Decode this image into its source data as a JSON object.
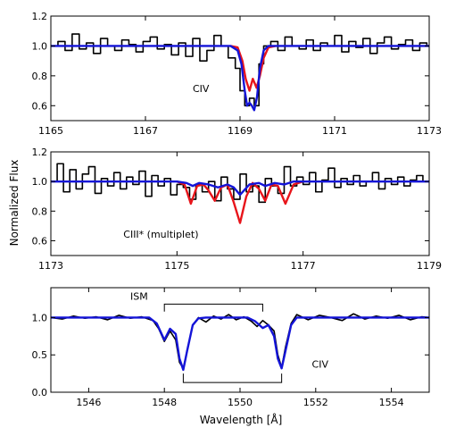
{
  "figure": {
    "ylabel": "Normalized Flux",
    "xlabel": "Wavelength [Å]"
  },
  "colors": {
    "data": "#000000",
    "red_model": "#e8151b",
    "blue_model": "#1414d8"
  },
  "chart_data": [
    {
      "type": "line",
      "xlim": [
        1165,
        1173
      ],
      "ylim": [
        0.5,
        1.2
      ],
      "xticks": [
        1165,
        1167,
        1169,
        1171,
        1173
      ],
      "yticks": [
        0.6,
        0.8,
        1.0,
        1.2
      ],
      "ytick_labels": [
        "0.6",
        "0.8",
        "1.0",
        "1.2"
      ],
      "annotations": [
        {
          "text": "CIV",
          "x": 1168.0,
          "y": 0.69
        }
      ],
      "series": [
        {
          "color": "#000000",
          "style": "step",
          "x": [
            1165.0,
            1165.15,
            1165.3,
            1165.45,
            1165.6,
            1165.75,
            1165.9,
            1166.05,
            1166.2,
            1166.35,
            1166.5,
            1166.65,
            1166.8,
            1166.95,
            1167.1,
            1167.25,
            1167.4,
            1167.55,
            1167.7,
            1167.85,
            1168.0,
            1168.15,
            1168.3,
            1168.45,
            1168.6,
            1168.75,
            1168.9,
            1169.0,
            1169.1,
            1169.2,
            1169.3,
            1169.4,
            1169.5,
            1169.65,
            1169.8,
            1169.95,
            1170.1,
            1170.25,
            1170.4,
            1170.55,
            1170.7,
            1170.85,
            1171.0,
            1171.15,
            1171.3,
            1171.45,
            1171.6,
            1171.75,
            1171.9,
            1172.05,
            1172.2,
            1172.35,
            1172.5,
            1172.65,
            1172.8,
            1172.95
          ],
          "y": [
            1.0,
            1.03,
            0.97,
            1.08,
            0.98,
            1.02,
            0.95,
            1.05,
            1.0,
            0.97,
            1.04,
            1.01,
            0.96,
            1.03,
            1.06,
            0.98,
            1.01,
            0.94,
            1.02,
            0.93,
            1.05,
            0.9,
            0.97,
            1.07,
            1.0,
            0.92,
            0.85,
            0.7,
            0.6,
            0.65,
            0.6,
            0.88,
            1.0,
            1.03,
            0.97,
            1.06,
            1.0,
            0.98,
            1.04,
            0.97,
            1.02,
            1.0,
            1.07,
            0.96,
            1.03,
            0.99,
            1.05,
            0.95,
            1.02,
            1.06,
            0.98,
            1.01,
            1.04,
            0.97,
            1.02,
            1.0
          ]
        },
        {
          "color": "#e8151b",
          "x": [
            1168.8,
            1168.95,
            1169.05,
            1169.12,
            1169.2,
            1169.27,
            1169.35,
            1169.42,
            1169.5,
            1169.6,
            1169.75
          ],
          "y": [
            1.0,
            0.99,
            0.9,
            0.78,
            0.7,
            0.78,
            0.72,
            0.8,
            0.92,
            0.99,
            1.0
          ]
        },
        {
          "color": "#1414d8",
          "x": [
            1165.0,
            1168.8,
            1168.95,
            1169.03,
            1169.1,
            1169.15,
            1169.2,
            1169.25,
            1169.3,
            1169.36,
            1169.42,
            1169.5,
            1169.6,
            1173.0
          ],
          "y": [
            1.0,
            1.0,
            0.97,
            0.88,
            0.7,
            0.6,
            0.62,
            0.6,
            0.57,
            0.66,
            0.85,
            0.97,
            1.0,
            1.0
          ]
        }
      ]
    },
    {
      "type": "line",
      "xlim": [
        1173,
        1179
      ],
      "ylim": [
        0.5,
        1.2
      ],
      "xticks": [
        1173,
        1175,
        1177,
        1179
      ],
      "yticks": [
        0.6,
        0.8,
        1.0,
        1.2
      ],
      "ytick_labels": [
        "0.6",
        "0.8",
        "1.0",
        "1.2"
      ],
      "annotations": [
        {
          "text": "CIII* (multiplet)",
          "x": 1174.15,
          "y": 0.62
        }
      ],
      "series": [
        {
          "color": "#000000",
          "style": "step",
          "x": [
            1173.0,
            1173.1,
            1173.2,
            1173.3,
            1173.4,
            1173.5,
            1173.6,
            1173.7,
            1173.8,
            1173.9,
            1174.0,
            1174.1,
            1174.2,
            1174.3,
            1174.4,
            1174.5,
            1174.6,
            1174.7,
            1174.8,
            1174.9,
            1175.0,
            1175.1,
            1175.2,
            1175.3,
            1175.4,
            1175.5,
            1175.6,
            1175.7,
            1175.8,
            1175.9,
            1176.0,
            1176.1,
            1176.2,
            1176.3,
            1176.4,
            1176.5,
            1176.6,
            1176.7,
            1176.8,
            1176.9,
            1177.0,
            1177.1,
            1177.2,
            1177.3,
            1177.4,
            1177.5,
            1177.6,
            1177.7,
            1177.8,
            1177.9,
            1178.0,
            1178.1,
            1178.2,
            1178.3,
            1178.4,
            1178.5,
            1178.6,
            1178.7,
            1178.8,
            1178.9
          ],
          "y": [
            1.0,
            1.12,
            0.93,
            1.08,
            0.95,
            1.05,
            1.1,
            0.92,
            1.02,
            0.97,
            1.06,
            0.95,
            1.03,
            0.98,
            1.07,
            0.9,
            1.04,
            0.97,
            1.02,
            0.91,
            0.98,
            0.96,
            0.88,
            0.98,
            0.93,
            1.0,
            0.87,
            1.03,
            0.95,
            0.88,
            1.05,
            0.93,
            0.97,
            0.86,
            1.02,
            0.97,
            0.92,
            1.1,
            0.97,
            1.03,
            0.98,
            1.06,
            0.93,
            1.01,
            1.09,
            0.96,
            1.02,
            0.98,
            1.04,
            0.97,
            1.0,
            1.06,
            0.95,
            1.02,
            0.98,
            1.03,
            0.97,
            1.01,
            1.04,
            1.0
          ]
        },
        {
          "color": "#e8151b",
          "x": [
            1175.0,
            1175.12,
            1175.22,
            1175.32,
            1175.42,
            1175.5,
            1175.6,
            1175.7,
            1175.8,
            1175.9,
            1176.0,
            1176.1,
            1176.2,
            1176.3,
            1176.4,
            1176.5,
            1176.6,
            1176.72,
            1176.85,
            1177.0
          ],
          "y": [
            1.0,
            0.98,
            0.85,
            0.97,
            0.98,
            0.94,
            0.87,
            0.96,
            0.98,
            0.86,
            0.72,
            0.9,
            0.99,
            0.95,
            0.87,
            0.98,
            0.97,
            0.85,
            0.98,
            1.0
          ]
        },
        {
          "color": "#1414d8",
          "x": [
            1173.0,
            1175.0,
            1175.15,
            1175.25,
            1175.35,
            1175.5,
            1175.65,
            1175.8,
            1175.9,
            1176.0,
            1176.15,
            1176.3,
            1176.4,
            1176.55,
            1176.7,
            1176.85,
            1179.0
          ],
          "y": [
            1.0,
            1.0,
            0.99,
            0.97,
            0.99,
            0.98,
            0.96,
            0.98,
            0.96,
            0.91,
            0.98,
            0.99,
            0.97,
            0.99,
            0.98,
            1.0,
            1.0
          ]
        }
      ]
    },
    {
      "type": "line",
      "xlim": [
        1545,
        1555
      ],
      "ylim": [
        0.0,
        1.4
      ],
      "xticks": [
        1546,
        1548,
        1550,
        1552,
        1554
      ],
      "yticks": [
        0.0,
        0.5,
        1.0
      ],
      "ytick_labels": [
        "0.0",
        "0.5",
        "1.0"
      ],
      "annotations": [
        {
          "text": "ISM",
          "x": 1547.1,
          "y": 1.24
        },
        {
          "text": "CIV",
          "x": 1551.9,
          "y": 0.33
        }
      ],
      "brackets": [
        {
          "x0": 1548.0,
          "x1": 1550.6,
          "y": 1.18,
          "tick_to": 1.08
        },
        {
          "x0": 1548.5,
          "x1": 1551.1,
          "y": 0.13,
          "tick_to": 0.25
        }
      ],
      "series": [
        {
          "color": "#000000",
          "x": [
            1545.0,
            1545.3,
            1545.6,
            1545.9,
            1546.2,
            1546.5,
            1546.8,
            1547.1,
            1547.4,
            1547.7,
            1547.85,
            1548.0,
            1548.15,
            1548.3,
            1548.4,
            1548.5,
            1548.6,
            1548.75,
            1548.9,
            1549.1,
            1549.3,
            1549.5,
            1549.7,
            1549.9,
            1550.1,
            1550.3,
            1550.45,
            1550.6,
            1550.75,
            1550.9,
            1551.0,
            1551.1,
            1551.2,
            1551.35,
            1551.5,
            1551.8,
            1552.1,
            1552.4,
            1552.7,
            1553.0,
            1553.3,
            1553.6,
            1553.9,
            1554.2,
            1554.5,
            1554.8,
            1555.0
          ],
          "y": [
            1.0,
            0.98,
            1.02,
            0.99,
            1.01,
            0.97,
            1.03,
            0.99,
            1.01,
            0.96,
            0.85,
            0.68,
            0.82,
            0.7,
            0.4,
            0.32,
            0.55,
            0.9,
            1.0,
            0.94,
            1.02,
            0.98,
            1.04,
            0.97,
            1.01,
            0.95,
            0.88,
            0.96,
            0.9,
            0.82,
            0.5,
            0.33,
            0.6,
            0.92,
            1.04,
            0.97,
            1.03,
            1.0,
            0.96,
            1.05,
            0.98,
            1.02,
            0.99,
            1.03,
            0.97,
            1.01,
            1.0
          ]
        },
        {
          "color": "#1414d8",
          "x": [
            1545.0,
            1547.6,
            1547.8,
            1548.0,
            1548.15,
            1548.3,
            1548.4,
            1548.5,
            1548.6,
            1548.75,
            1548.9,
            1549.1,
            1550.2,
            1550.4,
            1550.6,
            1550.75,
            1550.9,
            1551.0,
            1551.1,
            1551.2,
            1551.35,
            1551.5,
            1555.0
          ],
          "y": [
            1.0,
            1.0,
            0.92,
            0.7,
            0.85,
            0.78,
            0.45,
            0.3,
            0.55,
            0.9,
            0.99,
            1.0,
            1.0,
            0.95,
            0.86,
            0.9,
            0.75,
            0.45,
            0.32,
            0.55,
            0.9,
            1.0,
            1.0
          ]
        }
      ]
    }
  ]
}
